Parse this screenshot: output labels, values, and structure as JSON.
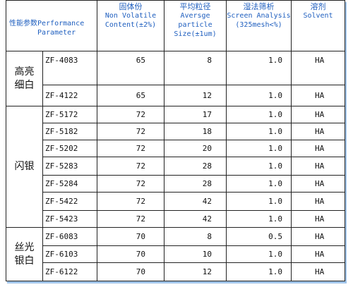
{
  "table": {
    "headers": [
      [
        "性能参数Performance",
        "Parameter"
      ],
      [
        "固体份",
        "Non Volatile",
        "Content(±2%)"
      ],
      [
        "平均粒径",
        "Aversge",
        "particle",
        "Size(±1um)"
      ],
      [
        "湿法筛析",
        "Screen Analysis",
        "(325mesh<%)"
      ],
      [
        "溶剂",
        "Solvent"
      ]
    ],
    "groups": [
      {
        "name": "高亮细白",
        "rows": [
          [
            "ZF-4083",
            65,
            8,
            "1.0",
            "HA"
          ],
          [
            "ZF-4122",
            65,
            12,
            "1.0",
            "HA"
          ]
        ]
      },
      {
        "name": "闪银",
        "rows": [
          [
            "ZF-5172",
            72,
            17,
            "1.0",
            "HA"
          ],
          [
            "ZF-5182",
            72,
            18,
            "1.0",
            "HA"
          ],
          [
            "ZF-5202",
            72,
            20,
            "1.0",
            "HA"
          ],
          [
            "ZF-5283",
            72,
            28,
            "1.0",
            "HA"
          ],
          [
            "ZF-5284",
            72,
            28,
            "1.0",
            "HA"
          ],
          [
            "ZF-5422",
            72,
            42,
            "1.0",
            "HA"
          ],
          [
            "ZF-5423",
            72,
            42,
            "1.0",
            "HA"
          ]
        ]
      },
      {
        "name": "丝光银白",
        "rows": [
          [
            "ZF-6083",
            70,
            8,
            "0.5",
            "HA"
          ],
          [
            "ZF-6103",
            70,
            10,
            "1.0",
            "HA"
          ],
          [
            "ZF-6122",
            70,
            12,
            "1.0",
            "HA"
          ]
        ]
      }
    ]
  }
}
